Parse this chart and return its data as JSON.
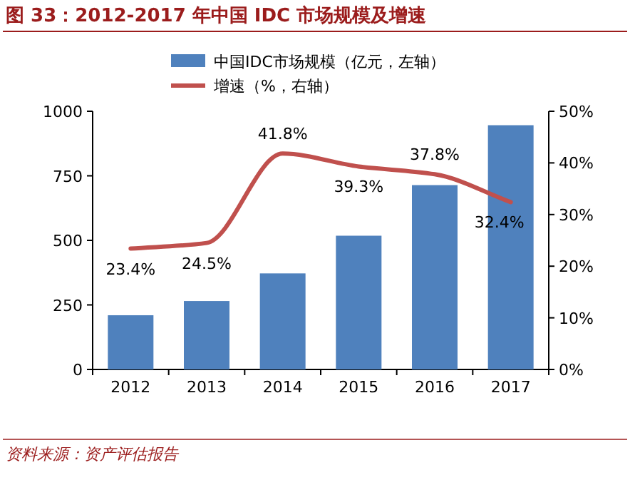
{
  "chart_data": {
    "type": "bar",
    "title": "图 33：2012-2017 年中国 IDC 市场规模及增速",
    "categories": [
      "2012",
      "2013",
      "2014",
      "2015",
      "2016",
      "2017"
    ],
    "series": [
      {
        "name": "中国IDC市场规模（亿元，左轴）",
        "color": "#4f81bd",
        "values": [
          210,
          265,
          372,
          518,
          714,
          946
        ]
      },
      {
        "name": "增速（%，右轴）",
        "type": "line",
        "axis": "y2",
        "color": "#c0504d",
        "values": [
          23.4,
          24.5,
          41.8,
          39.3,
          37.8,
          32.4
        ],
        "value_labels": [
          "23.4%",
          "24.5%",
          "41.8%",
          "39.3%",
          "37.8%",
          "32.4%"
        ]
      }
    ],
    "ylim": [
      0,
      1000
    ],
    "yticks": [
      0,
      250,
      500,
      750,
      1000
    ],
    "y2lim": [
      0,
      50
    ],
    "y2ticks": [
      {
        "value": 0,
        "label": "0%"
      },
      {
        "value": 10,
        "label": "10%"
      },
      {
        "value": 20,
        "label": "20%"
      },
      {
        "value": 30,
        "label": "30%"
      },
      {
        "value": 40,
        "label": "40%"
      },
      {
        "value": 50,
        "label": "50%"
      }
    ],
    "legend": "top",
    "annotations": [
      "资料来源：资产评估报告"
    ]
  }
}
